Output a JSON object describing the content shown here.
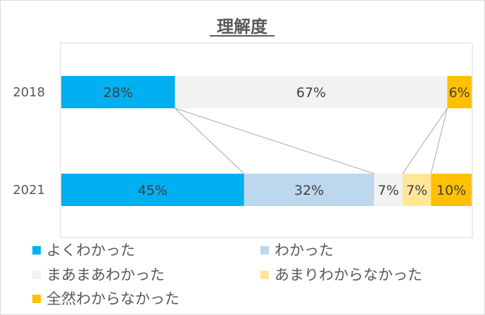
{
  "chart_data": {
    "type": "bar",
    "stacked": "100%",
    "orientation": "horizontal",
    "title": "理解度",
    "categories": [
      "2018",
      "2021"
    ],
    "series": [
      {
        "name": "よくわかった",
        "color": "#00b0f0",
        "values": [
          28,
          45
        ]
      },
      {
        "name": "わかった",
        "color": "#bdd7ee",
        "values": [
          0,
          32
        ]
      },
      {
        "name": "まあまあわかった",
        "color": "#f2f2f2",
        "values": [
          67,
          7
        ]
      },
      {
        "name": "あまりわからなかった",
        "color": "#ffe699",
        "values": [
          0,
          7
        ]
      },
      {
        "name": "全然わからなかった",
        "color": "#ffc000",
        "values": [
          6,
          10
        ]
      }
    ],
    "data_labels": [
      [
        "28%",
        "",
        "67%",
        "",
        "6%"
      ],
      [
        "45%",
        "32%",
        "7%",
        "7%",
        "10%"
      ]
    ],
    "xlim": [
      0,
      100
    ],
    "legend_position": "bottom",
    "series_lines": true,
    "grid": false
  }
}
